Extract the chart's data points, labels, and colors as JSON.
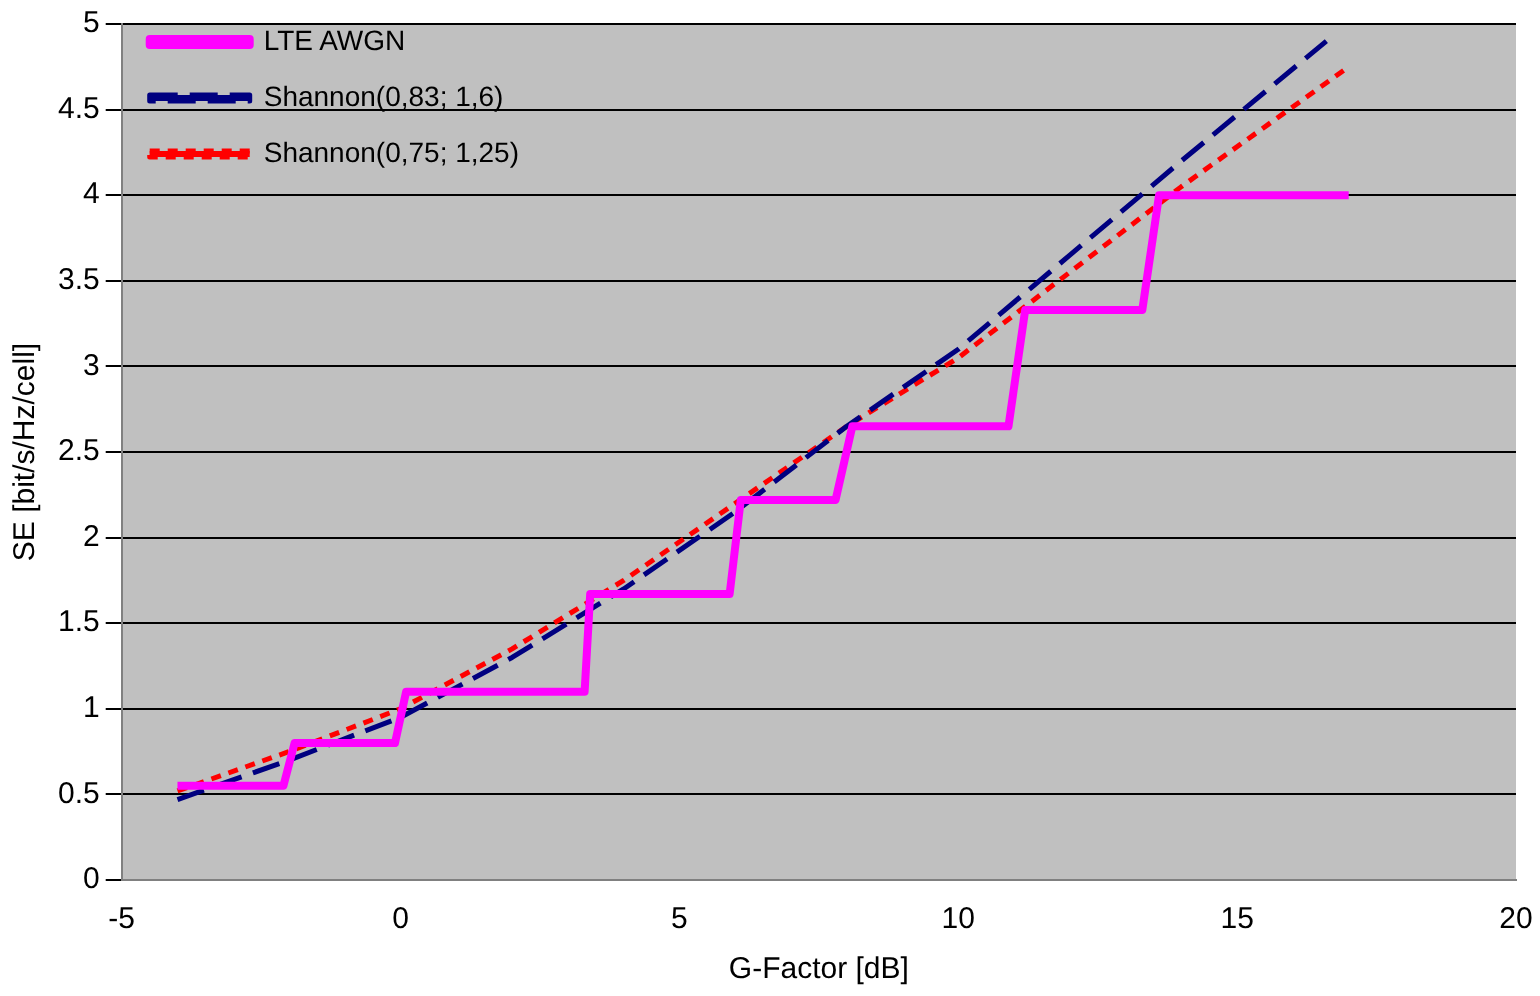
{
  "chart_data": {
    "type": "line",
    "xlabel": "G-Factor [dB]",
    "ylabel": "SE [bit/s/Hz/cell]",
    "xlim": [
      -5,
      20
    ],
    "xticks": [
      -5,
      0,
      5,
      10,
      15,
      20
    ],
    "ylim": [
      0,
      5
    ],
    "yticks": [
      0,
      0.5,
      1,
      1.5,
      2,
      2.5,
      3,
      3.5,
      4,
      4.5,
      5
    ],
    "grid": "y",
    "legend": "top left",
    "marker": "none",
    "series": [
      {
        "name": "LTE AWGN",
        "color": "#ff00ff",
        "line_style": "solid",
        "x": [
          -4,
          -2.1,
          -1.9,
          -0.1,
          0.1,
          3.3,
          3.4,
          5.9,
          6.1,
          7.8,
          8.1,
          10.9,
          11.2,
          13.3,
          13.6,
          17
        ],
        "values": [
          0.55,
          0.55,
          0.8,
          0.8,
          1.1,
          1.1,
          1.67,
          1.67,
          2.22,
          2.22,
          2.65,
          2.65,
          3.33,
          3.33,
          4.0,
          4.0
        ]
      },
      {
        "name": "Shannon(0,83; 1,6)",
        "color": "#000080",
        "line_style": "dashed",
        "x": [
          -4,
          -2,
          0,
          2,
          4,
          6,
          8,
          10,
          12,
          14,
          16.6
        ],
        "values": [
          0.47,
          0.7,
          0.95,
          1.3,
          1.7,
          2.15,
          2.65,
          3.1,
          3.65,
          4.2,
          4.9
        ]
      },
      {
        "name": "Shannon(0,75; 1,25)",
        "color": "#ff0000",
        "line_style": "dotted",
        "x": [
          -4,
          -2,
          0,
          2,
          4,
          6,
          8,
          10,
          12,
          14,
          17
        ],
        "values": [
          0.52,
          0.75,
          1.0,
          1.35,
          1.75,
          2.2,
          2.65,
          3.05,
          3.55,
          4.05,
          4.75
        ]
      }
    ]
  }
}
